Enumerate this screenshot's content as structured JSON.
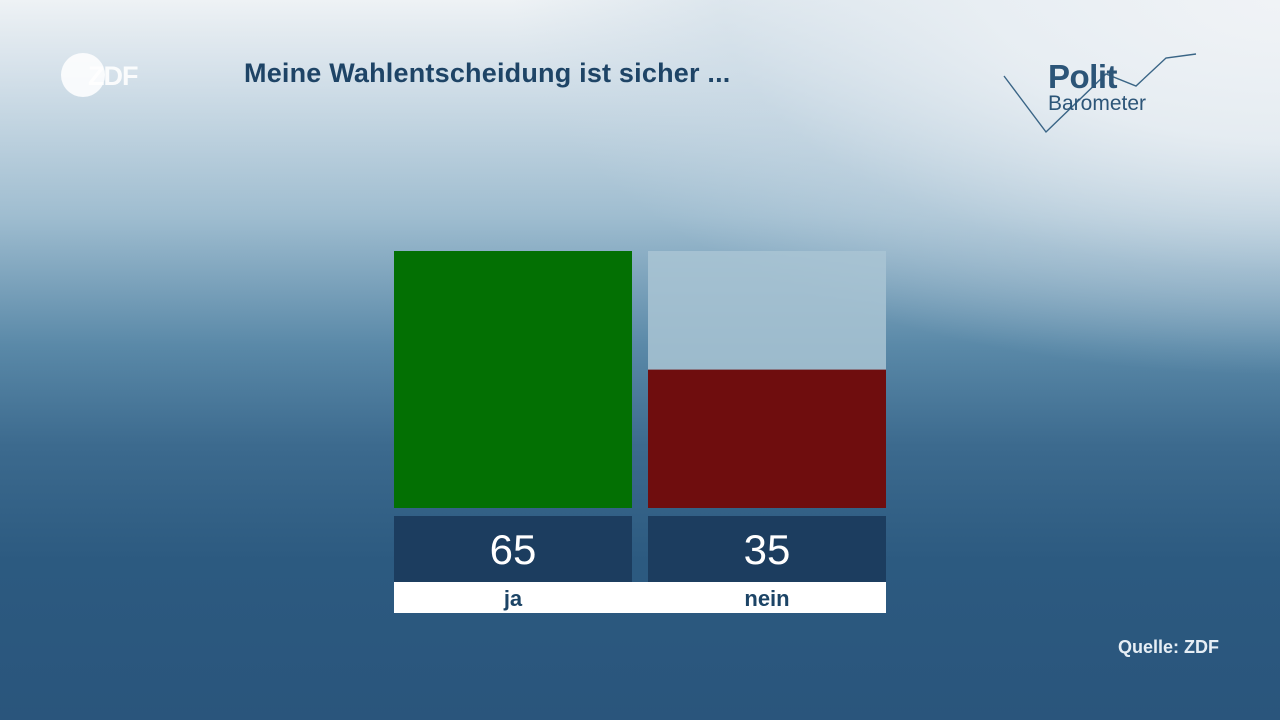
{
  "header": {
    "broadcaster": "ZDF",
    "title": "Meine Wahlentscheidung ist sicher ...",
    "brand_line1": "Polit",
    "brand_line2": "Barometer"
  },
  "footer": {
    "source": "Quelle: ZDF"
  },
  "colors": {
    "ja": "#037003",
    "nein": "#6f0d0e",
    "track": "#a9c4d3",
    "value_box": "#1c3d5f",
    "label_box": "#ffffff",
    "label_text": "#1c4466"
  },
  "chart_data": {
    "type": "bar",
    "title": "Meine Wahlentscheidung ist sicher ...",
    "categories": [
      "ja",
      "nein"
    ],
    "values": [
      65,
      35
    ],
    "value_labels": [
      "65",
      "35"
    ],
    "ylim": [
      0,
      65
    ],
    "xlabel": "",
    "ylabel": "",
    "grid": false,
    "legend": "none"
  }
}
